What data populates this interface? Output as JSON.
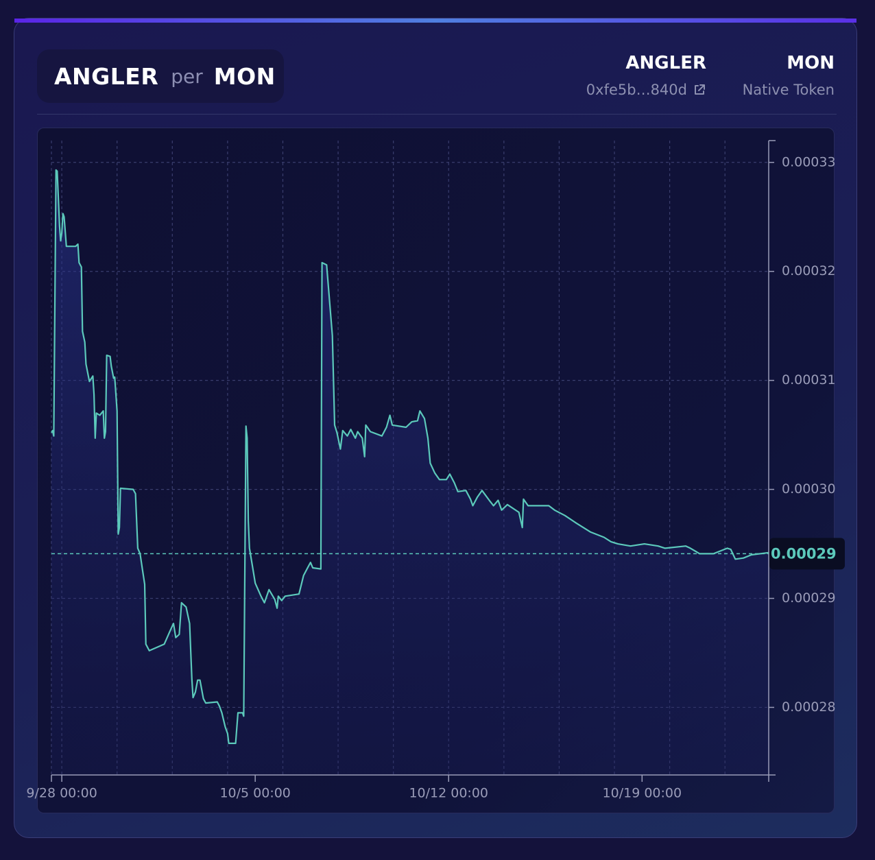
{
  "header": {
    "base": "ANGLER",
    "per": "per",
    "quote": "MON"
  },
  "tokens": [
    {
      "symbol": "ANGLER",
      "address": "0xfe5b…840d"
    },
    {
      "symbol": "MON",
      "subtitle": "Native Token"
    }
  ],
  "chart_data": {
    "type": "line",
    "xlim": [
      "9/27 15:00",
      "10/23 14:00"
    ],
    "xticks": [
      "9/28 00:00",
      "10/5 00:00",
      "10/12 00:00",
      "10/19 00:00"
    ],
    "x_grid_step_hours": 48,
    "ylim": [
      0.0002738,
      0.000332
    ],
    "yticks": [
      0.00028,
      0.00029,
      {
        "value": 0.0003,
        "label": "0.00030"
      },
      0.00031,
      0.00032,
      0.00033
    ],
    "grid": true,
    "current_price": {
      "value": 0.0002941,
      "label": "0.00029"
    },
    "series": [
      {
        "name": "ANGLER per MON",
        "color": "#5cc9bb",
        "x": [
          "9/27 15:00",
          "9/27 16:00",
          "9/27 17:00",
          "9/27 19:00",
          "9/27 20:00",
          "9/27 22:00",
          "9/27 23:00",
          "9/28 00:00",
          "9/28 01:00",
          "9/28 02:00",
          "9/28 04:00",
          "9/28 12:00",
          "9/28 14:00",
          "9/28 15:00",
          "9/28 17:00",
          "9/28 18:00",
          "9/28 20:00",
          "9/28 21:00",
          "9/29 00:00",
          "9/29 03:00",
          "9/29 04:00",
          "9/29 05:00",
          "9/29 06:00",
          "9/29 09:00",
          "9/29 12:00",
          "9/29 13:00",
          "9/29 14:00",
          "9/29 15:00",
          "9/29 18:00",
          "9/29 19:00",
          "9/29 21:00",
          "9/29 22:00",
          "9/30 00:00",
          "9/30 01:00",
          "9/30 02:00",
          "9/30 03:00",
          "9/30 14:00",
          "9/30 16:00",
          "9/30 18:00",
          "9/30 20:00",
          "9/30 22:00",
          "10/1 00:00",
          "10/1 01:00",
          "10/1 04:00",
          "10/1 17:00",
          "10/1 22:00",
          "10/2 01:00",
          "10/2 03:00",
          "10/2 06:00",
          "10/2 08:00",
          "10/2 12:00",
          "10/2 15:00",
          "10/2 17:00",
          "10/2 18:00",
          "10/2 20:00",
          "10/2 22:00",
          "10/3 00:00",
          "10/3 03:00",
          "10/3 05:00",
          "10/3 15:00",
          "10/3 17:00",
          "10/3 19:00",
          "10/3 22:00",
          "10/4 00:00",
          "10/4 01:00",
          "10/4 07:00",
          "10/4 09:00",
          "10/4 13:00",
          "10/4 14:00",
          "10/4 16:00",
          "10/4 17:00",
          "10/4 18:00",
          "10/4 19:00",
          "10/4 22:00",
          "10/5 00:00",
          "10/5 05:00",
          "10/5 08:00",
          "10/5 12:00",
          "10/5 17:00",
          "10/5 19:00",
          "10/5 20:00",
          "10/5 23:00",
          "10/6 02:00",
          "10/6 14:00",
          "10/6 18:00",
          "10/6 21:00",
          "10/7 00:00",
          "10/7 02:00",
          "10/7 09:00",
          "10/7 10:00",
          "10/7 14:00",
          "10/7 19:00",
          "10/7 21:00",
          "10/7 23:00",
          "10/8 02:00",
          "10/8 04:00",
          "10/8 08:00",
          "10/8 11:00",
          "10/8 15:00",
          "10/8 17:00",
          "10/8 21:00",
          "10/8 23:00",
          "10/9 00:00",
          "10/9 04:00",
          "10/9 14:00",
          "10/9 18:00",
          "10/9 21:00",
          "10/9 23:00",
          "10/10 11:00",
          "10/10 16:00",
          "10/10 21:00",
          "10/10 23:00",
          "10/11 03:00",
          "10/11 06:00",
          "10/11 08:00",
          "10/11 12:00",
          "10/11 16:00",
          "10/11 22:00",
          "10/12 01:00",
          "10/12 05:00",
          "10/12 08:00",
          "10/12 15:00",
          "10/12 19:00",
          "10/12 21:00",
          "10/13 01:00",
          "10/13 05:00",
          "10/13 12:00",
          "10/13 15:00",
          "10/13 19:00",
          "10/13 22:00",
          "10/14 03:00",
          "10/14 13:00",
          "10/14 16:00",
          "10/14 17:00",
          "10/14 21:00",
          "10/15 15:00",
          "10/15 20:00",
          "10/16 05:00",
          "10/16 15:00",
          "10/17 03:00",
          "10/17 15:00",
          "10/17 21:00",
          "10/18 03:00",
          "10/18 14:00",
          "10/19 02:00",
          "10/19 14:00",
          "10/19 20:00",
          "10/20 14:00",
          "10/20 18:00",
          "10/21 02:00",
          "10/21 14:00",
          "10/22 02:00",
          "10/22 05:00",
          "10/22 09:00",
          "10/22 16:00",
          "10/22 23:00",
          "10/23 14:00"
        ],
        "values": [
          0.0003052,
          0.0003054,
          0.0003049,
          0.0003293,
          0.0003292,
          0.0003242,
          0.0003228,
          0.0003235,
          0.0003253,
          0.000325,
          0.0003223,
          0.0003223,
          0.0003225,
          0.0003208,
          0.0003204,
          0.0003145,
          0.0003135,
          0.0003115,
          0.0003099,
          0.0003104,
          0.0003087,
          0.0003047,
          0.000307,
          0.0003068,
          0.0003072,
          0.0003047,
          0.0003053,
          0.0003123,
          0.0003122,
          0.0003113,
          0.0003102,
          0.0003103,
          0.0003072,
          0.0002959,
          0.0002965,
          0.0003001,
          0.0003,
          0.0002996,
          0.0002946,
          0.0002941,
          0.0002927,
          0.0002913,
          0.0002858,
          0.0002852,
          0.0002858,
          0.000287,
          0.0002877,
          0.0002864,
          0.0002867,
          0.0002896,
          0.0002892,
          0.0002877,
          0.0002826,
          0.0002809,
          0.0002814,
          0.0002825,
          0.0002825,
          0.0002808,
          0.0002804,
          0.0002805,
          0.0002801,
          0.0002795,
          0.0002782,
          0.0002776,
          0.0002767,
          0.0002767,
          0.0002795,
          0.0002795,
          0.0002792,
          0.0003058,
          0.0003047,
          0.0002971,
          0.0002946,
          0.0002927,
          0.0002914,
          0.0002902,
          0.0002896,
          0.0002908,
          0.0002899,
          0.0002891,
          0.0002902,
          0.0002898,
          0.0002902,
          0.0002904,
          0.0002921,
          0.0002927,
          0.0002933,
          0.0002928,
          0.0002927,
          0.0003208,
          0.0003206,
          0.0003141,
          0.0003059,
          0.0003052,
          0.0003037,
          0.0003054,
          0.0003049,
          0.0003055,
          0.0003047,
          0.0003053,
          0.0003047,
          0.000303,
          0.0003059,
          0.0003053,
          0.0003049,
          0.0003057,
          0.0003068,
          0.0003059,
          0.0003057,
          0.0003062,
          0.0003063,
          0.0003072,
          0.0003065,
          0.0003047,
          0.0003024,
          0.0003015,
          0.0003009,
          0.0003009,
          0.0003014,
          0.0003006,
          0.0002998,
          0.0002999,
          0.0002991,
          0.0002985,
          0.0002993,
          0.0002999,
          0.0002989,
          0.0002985,
          0.000299,
          0.0002981,
          0.0002986,
          0.0002979,
          0.0002965,
          0.0002991,
          0.0002985,
          0.0002985,
          0.0002981,
          0.0002976,
          0.0002969,
          0.0002961,
          0.0002956,
          0.0002952,
          0.000295,
          0.0002948,
          0.000295,
          0.0002948,
          0.0002946,
          0.0002948,
          0.0002946,
          0.0002941,
          0.0002941,
          0.0002946,
          0.0002945,
          0.0002936,
          0.0002937,
          0.000294,
          0.0002942
        ]
      }
    ]
  }
}
